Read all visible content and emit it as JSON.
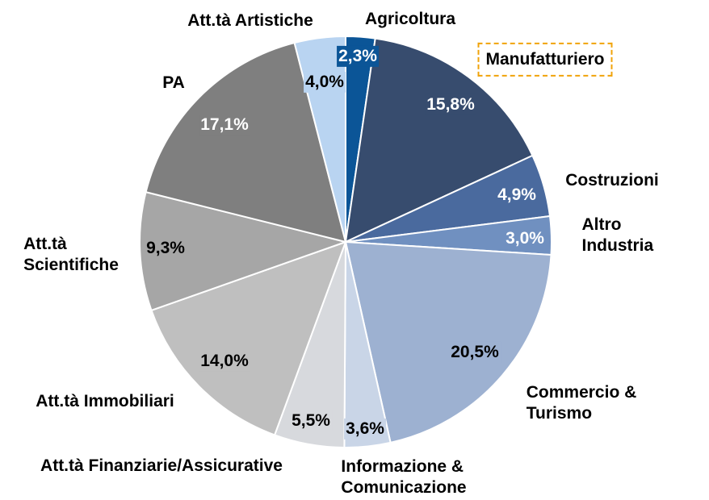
{
  "chart_data": {
    "type": "pie",
    "categories": [
      "Agricoltura",
      "Manufatturiero",
      "Costruzioni",
      "Altro Industria",
      "Commercio &\nTurismo",
      "Informazione &\nComunicazione",
      "Att.tà Finanziarie/Assicurative",
      "Att.tà Immobiliari",
      "Att.tà\nScientifiche",
      "PA",
      "Att.tà Artistiche"
    ],
    "values": [
      2.3,
      15.8,
      4.9,
      3.0,
      20.5,
      3.6,
      5.5,
      14.0,
      9.3,
      17.1,
      4.0
    ],
    "value_labels": [
      "2,3%",
      "15,8%",
      "4,9%",
      "3,0%",
      "20,5%",
      "3,6%",
      "5,5%",
      "14,0%",
      "9,3%",
      "17,1%",
      "4,0%"
    ],
    "colors": [
      "#0b5597",
      "#374c6e",
      "#4a6a9e",
      "#7090c0",
      "#9db1d1",
      "#c9d5e7",
      "#d7d9dd",
      "#bfbfbf",
      "#a6a6a6",
      "#7f7f7f",
      "#b9d4f1"
    ],
    "highlight": "Manufatturiero"
  }
}
